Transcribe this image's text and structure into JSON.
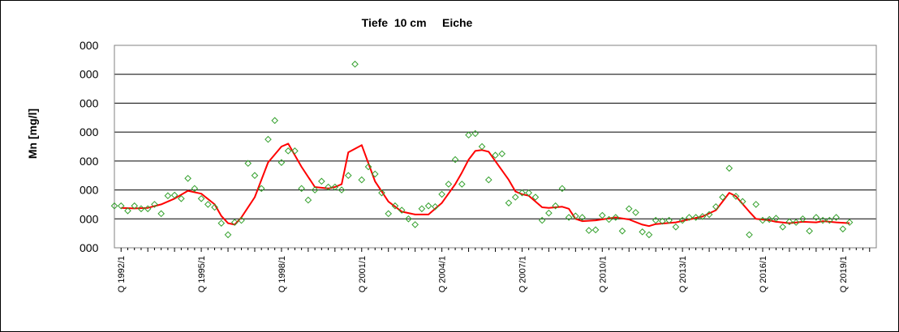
{
  "chart_data": {
    "type": "scatter",
    "title": "Tiefe  10 cm     Eiche",
    "ylabel": "Mn [mg/l]",
    "xlabel": "",
    "ytick_labels": [
      "000",
      "000",
      "000",
      "000",
      "000",
      "000",
      "000",
      "000"
    ],
    "xtick_labels": [
      "Q 1992/1",
      "Q 1995/1",
      "Q 1998/1",
      "Q 2001/1",
      "Q 2004/1",
      "Q 2007/1",
      "Q 2010/1",
      "Q 2013/1",
      "Q 2016/1",
      "Q 2019/1"
    ],
    "xlim": [
      1991.75,
      2020.25
    ],
    "ylim": [
      0,
      7
    ],
    "grid": "horizontal",
    "legend": "none",
    "series": [
      {
        "kind": "markers",
        "marker": "diamond",
        "color": "#33a02c",
        "points": [
          [
            1991.75,
            1.45
          ],
          [
            1992.0,
            1.45
          ],
          [
            1992.25,
            1.28
          ],
          [
            1992.5,
            1.45
          ],
          [
            1992.75,
            1.35
          ],
          [
            1993.0,
            1.35
          ],
          [
            1993.25,
            1.5
          ],
          [
            1993.5,
            1.18
          ],
          [
            1993.75,
            1.8
          ],
          [
            1994.0,
            1.82
          ],
          [
            1994.25,
            1.7
          ],
          [
            1994.5,
            2.4
          ],
          [
            1994.75,
            2.05
          ],
          [
            1995.0,
            1.7
          ],
          [
            1995.25,
            1.5
          ],
          [
            1995.5,
            1.4
          ],
          [
            1995.75,
            0.85
          ],
          [
            1996.0,
            0.45
          ],
          [
            1996.25,
            0.88
          ],
          [
            1996.5,
            0.95
          ],
          [
            1996.75,
            2.92
          ],
          [
            1997.0,
            2.5
          ],
          [
            1997.25,
            2.05
          ],
          [
            1997.5,
            3.75
          ],
          [
            1997.75,
            4.4
          ],
          [
            1998.0,
            2.95
          ],
          [
            1998.25,
            3.35
          ],
          [
            1998.5,
            3.35
          ],
          [
            1998.75,
            2.05
          ],
          [
            1999.0,
            1.65
          ],
          [
            1999.25,
            2.0
          ],
          [
            1999.5,
            2.3
          ],
          [
            1999.75,
            2.1
          ],
          [
            2000.0,
            2.1
          ],
          [
            2000.25,
            2.0
          ],
          [
            2000.5,
            2.5
          ],
          [
            2000.75,
            6.35
          ],
          [
            2001.0,
            2.35
          ],
          [
            2001.25,
            2.8
          ],
          [
            2001.5,
            2.55
          ],
          [
            2001.75,
            1.9
          ],
          [
            2002.0,
            1.18
          ],
          [
            2002.25,
            1.45
          ],
          [
            2002.5,
            1.3
          ],
          [
            2002.75,
            1.0
          ],
          [
            2003.0,
            0.8
          ],
          [
            2003.25,
            1.35
          ],
          [
            2003.5,
            1.45
          ],
          [
            2003.75,
            1.42
          ],
          [
            2004.0,
            1.85
          ],
          [
            2004.25,
            2.2
          ],
          [
            2004.5,
            3.05
          ],
          [
            2004.75,
            2.2
          ],
          [
            2005.0,
            3.9
          ],
          [
            2005.25,
            3.95
          ],
          [
            2005.5,
            3.5
          ],
          [
            2005.75,
            2.35
          ],
          [
            2006.0,
            3.2
          ],
          [
            2006.25,
            3.25
          ],
          [
            2006.5,
            1.55
          ],
          [
            2006.75,
            1.75
          ],
          [
            2007.0,
            1.9
          ],
          [
            2007.25,
            1.9
          ],
          [
            2007.5,
            1.75
          ],
          [
            2007.75,
            0.95
          ],
          [
            2008.0,
            1.2
          ],
          [
            2008.25,
            1.45
          ],
          [
            2008.5,
            2.05
          ],
          [
            2008.75,
            1.05
          ],
          [
            2009.0,
            1.1
          ],
          [
            2009.25,
            1.05
          ],
          [
            2009.5,
            0.6
          ],
          [
            2009.75,
            0.62
          ],
          [
            2010.0,
            1.12
          ],
          [
            2010.25,
            0.98
          ],
          [
            2010.5,
            1.05
          ],
          [
            2010.75,
            0.58
          ],
          [
            2011.0,
            1.35
          ],
          [
            2011.25,
            1.22
          ],
          [
            2011.5,
            0.55
          ],
          [
            2011.75,
            0.45
          ],
          [
            2012.0,
            0.95
          ],
          [
            2012.25,
            0.92
          ],
          [
            2012.5,
            0.95
          ],
          [
            2012.75,
            0.72
          ],
          [
            2013.0,
            0.95
          ],
          [
            2013.25,
            1.05
          ],
          [
            2013.5,
            1.05
          ],
          [
            2013.75,
            1.08
          ],
          [
            2014.0,
            1.15
          ],
          [
            2014.25,
            1.42
          ],
          [
            2014.5,
            1.75
          ],
          [
            2014.75,
            2.75
          ],
          [
            2015.0,
            1.78
          ],
          [
            2015.25,
            1.6
          ],
          [
            2015.5,
            0.45
          ],
          [
            2015.75,
            1.5
          ],
          [
            2016.0,
            0.95
          ],
          [
            2016.25,
            0.98
          ],
          [
            2016.5,
            1.02
          ],
          [
            2016.75,
            0.72
          ],
          [
            2017.0,
            0.9
          ],
          [
            2017.25,
            0.88
          ],
          [
            2017.5,
            1.0
          ],
          [
            2017.75,
            0.58
          ],
          [
            2018.0,
            1.05
          ],
          [
            2018.25,
            0.95
          ],
          [
            2018.5,
            0.95
          ],
          [
            2018.75,
            1.05
          ],
          [
            2019.0,
            0.65
          ],
          [
            2019.25,
            0.88
          ]
        ]
      },
      {
        "kind": "line",
        "color": "#ff0000",
        "points": [
          [
            1992.0,
            1.38
          ],
          [
            1992.5,
            1.36
          ],
          [
            1993.0,
            1.38
          ],
          [
            1993.5,
            1.5
          ],
          [
            1994.0,
            1.7
          ],
          [
            1994.5,
            1.97
          ],
          [
            1995.0,
            1.87
          ],
          [
            1995.5,
            1.5
          ],
          [
            1995.75,
            1.1
          ],
          [
            1996.0,
            0.85
          ],
          [
            1996.25,
            0.8
          ],
          [
            1996.5,
            1.05
          ],
          [
            1997.0,
            1.75
          ],
          [
            1997.5,
            2.95
          ],
          [
            1998.0,
            3.5
          ],
          [
            1998.25,
            3.6
          ],
          [
            1998.75,
            2.8
          ],
          [
            1999.25,
            2.1
          ],
          [
            1999.75,
            2.05
          ],
          [
            2000.0,
            2.1
          ],
          [
            2000.25,
            2.2
          ],
          [
            2000.5,
            3.3
          ],
          [
            2001.0,
            3.55
          ],
          [
            2001.5,
            2.3
          ],
          [
            2002.0,
            1.6
          ],
          [
            2002.5,
            1.25
          ],
          [
            2003.0,
            1.15
          ],
          [
            2003.5,
            1.15
          ],
          [
            2004.0,
            1.55
          ],
          [
            2004.5,
            2.2
          ],
          [
            2004.75,
            2.6
          ],
          [
            2005.0,
            3.05
          ],
          [
            2005.25,
            3.35
          ],
          [
            2005.5,
            3.38
          ],
          [
            2005.75,
            3.32
          ],
          [
            2006.0,
            3.0
          ],
          [
            2006.5,
            2.35
          ],
          [
            2006.75,
            1.95
          ],
          [
            2007.0,
            1.85
          ],
          [
            2007.25,
            1.8
          ],
          [
            2007.75,
            1.4
          ],
          [
            2008.0,
            1.38
          ],
          [
            2008.5,
            1.42
          ],
          [
            2008.75,
            1.35
          ],
          [
            2009.0,
            1.0
          ],
          [
            2009.25,
            0.92
          ],
          [
            2009.75,
            0.95
          ],
          [
            2010.5,
            1.05
          ],
          [
            2011.0,
            0.98
          ],
          [
            2011.5,
            0.8
          ],
          [
            2011.75,
            0.75
          ],
          [
            2012.0,
            0.82
          ],
          [
            2012.75,
            0.88
          ],
          [
            2013.25,
            0.98
          ],
          [
            2013.75,
            1.08
          ],
          [
            2014.25,
            1.3
          ],
          [
            2014.5,
            1.6
          ],
          [
            2014.75,
            1.9
          ],
          [
            2015.0,
            1.78
          ],
          [
            2015.5,
            1.25
          ],
          [
            2015.75,
            1.0
          ],
          [
            2016.25,
            0.95
          ],
          [
            2016.5,
            0.9
          ],
          [
            2017.0,
            0.85
          ],
          [
            2017.5,
            0.9
          ],
          [
            2018.0,
            0.88
          ],
          [
            2018.25,
            0.92
          ],
          [
            2018.75,
            0.88
          ],
          [
            2019.25,
            0.85
          ]
        ]
      }
    ]
  }
}
